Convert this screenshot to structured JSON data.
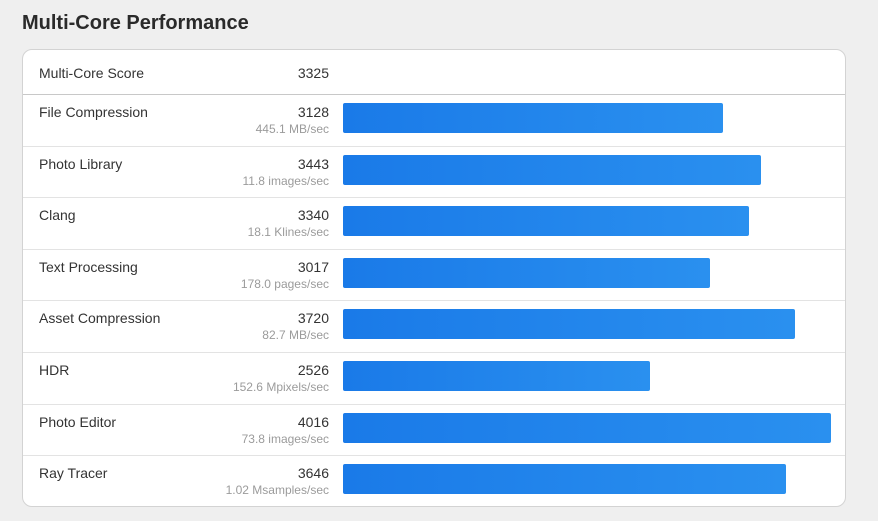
{
  "title": "Multi-Core Performance",
  "summary": {
    "label": "Multi-Core Score",
    "score": "3325"
  },
  "benchmarks": [
    {
      "name": "File Compression",
      "score": "3128",
      "rate": "445.1 MB/sec",
      "value": 3128
    },
    {
      "name": "Photo Library",
      "score": "3443",
      "rate": "11.8 images/sec",
      "value": 3443
    },
    {
      "name": "Clang",
      "score": "3340",
      "rate": "18.1 Klines/sec",
      "value": 3340
    },
    {
      "name": "Text Processing",
      "score": "3017",
      "rate": "178.0 pages/sec",
      "value": 3017
    },
    {
      "name": "Asset Compression",
      "score": "3720",
      "rate": "82.7 MB/sec",
      "value": 3720
    },
    {
      "name": "HDR",
      "score": "2526",
      "rate": "152.6 Mpixels/sec",
      "value": 2526
    },
    {
      "name": "Photo Editor",
      "score": "4016",
      "rate": "73.8 images/sec",
      "value": 4016
    },
    {
      "name": "Ray Tracer",
      "score": "3646",
      "rate": "1.02 Msamples/sec",
      "value": 3646
    }
  ],
  "bar_max_value": 4016,
  "colors": {
    "bar": "#1a7ae8",
    "bar_end": "#2a90ef"
  }
}
